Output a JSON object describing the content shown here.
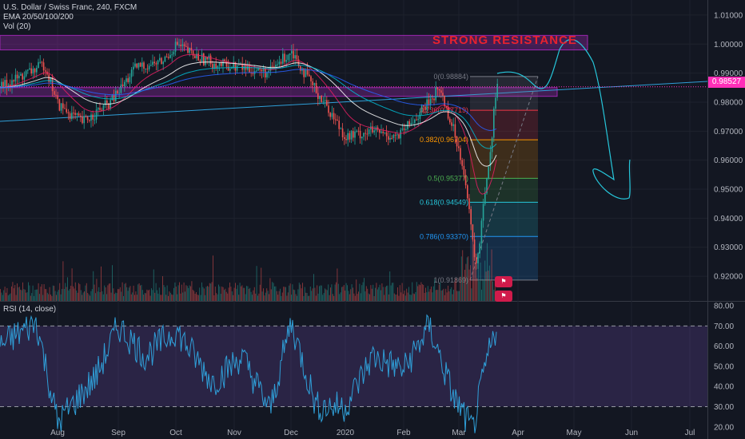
{
  "header": {
    "symbol_line": "U.S. Dollar / Swiss Franc, 240, FXCM",
    "ema_line": "EMA 20/50/100/200",
    "vol_line": "Vol (20)",
    "rsi_line": "RSI (14, close)"
  },
  "annotation": {
    "text": "STRONG RESISTANCE",
    "color": "#e8222e"
  },
  "current_price": "0.98527",
  "colors": {
    "background": "#131722",
    "up": "#26a69a",
    "down": "#ef5350",
    "zone": "#9c27b0",
    "line": "#2f9fd8",
    "rsi": "#2f9fd8",
    "price_badge": "#ff2fb8"
  },
  "chart_data": [
    {
      "type": "line",
      "title": "U.S. Dollar / Swiss Franc, 240, FXCM",
      "x_ticks": [
        "Aug",
        "Sep",
        "Oct",
        "Nov",
        "Dec",
        "2020",
        "Feb",
        "Mar",
        "Apr",
        "May",
        "Jun",
        "Jul"
      ],
      "y_ticks": [
        "1.01000",
        "1.00000",
        "0.99000",
        "0.98000",
        "0.97000",
        "0.96000",
        "0.95000",
        "0.94000",
        "0.93000",
        "0.92000"
      ],
      "ylim": [
        0.9115,
        1.013
      ],
      "series": [
        {
          "name": "price",
          "points": [
            [
              "Jul 1",
              0.985
            ],
            [
              "Jul 12",
              0.989
            ],
            [
              "Jul 24",
              0.993
            ],
            [
              "Aug 1",
              0.979
            ],
            [
              "Aug 13",
              0.973
            ],
            [
              "Aug 27",
              0.98
            ],
            [
              "Sep 10",
              0.992
            ],
            [
              "Sep 24",
              0.994
            ],
            [
              "Oct 1",
              1.0
            ],
            [
              "Oct 10",
              0.996
            ],
            [
              "Oct 22",
              0.993
            ],
            [
              "Nov 5",
              0.992
            ],
            [
              "Nov 19",
              0.99
            ],
            [
              "Dec 1",
              0.998
            ],
            [
              "Dec 10",
              0.988
            ],
            [
              "Dec 20",
              0.979
            ],
            [
              "Dec 31",
              0.968
            ],
            [
              "Jan 14",
              0.97
            ],
            [
              "Jan 28",
              0.968
            ],
            [
              "Feb 12",
              0.978
            ],
            [
              "Feb 20",
              0.985
            ],
            [
              "Feb 28",
              0.97
            ],
            [
              "Mar 3",
              0.958
            ],
            [
              "Mar 8",
              0.93
            ],
            [
              "Mar 10",
              0.923
            ],
            [
              "Mar 13",
              0.945
            ],
            [
              "Mar 17",
              0.965
            ],
            [
              "Mar 20",
              0.9885
            ],
            [
              "Mar 21",
              0.985
            ]
          ]
        }
      ],
      "resistance_zones": [
        [
          0.998,
          1.003
        ],
        [
          0.982,
          0.985
        ]
      ],
      "fibonacci": [
        {
          "label": "0(0.98884)",
          "value": 0.98884,
          "color": "#787b86"
        },
        {
          "label": "0.236(0.97719)",
          "value": 0.97719,
          "color": "#f23645"
        },
        {
          "label": "0.382(0.96704)",
          "value": 0.96704,
          "color": "#ff9800"
        },
        {
          "label": "0.5(0.95377)",
          "value": 0.95377,
          "color": "#4caf50"
        },
        {
          "label": "0.618(0.94549)",
          "value": 0.94549,
          "color": "#26c6da"
        },
        {
          "label": "0.786(0.93370)",
          "value": 0.9337,
          "color": "#2196f3"
        },
        {
          "label": "1(0.91869)",
          "value": 0.91869,
          "color": "#787b86"
        }
      ]
    },
    {
      "type": "line",
      "title": "RSI (14, close)",
      "y_ticks": [
        "80.00",
        "70.00",
        "60.00",
        "50.00",
        "40.00",
        "30.00",
        "20.00"
      ],
      "ylim": [
        14,
        82
      ],
      "bands": [
        30,
        70
      ],
      "series": [
        {
          "name": "RSI",
          "points": [
            [
              "Jul 1",
              60
            ],
            [
              "Jul 20",
              72
            ],
            [
              "Aug 1",
              22
            ],
            [
              "Aug 20",
              45
            ],
            [
              "Sep 1",
              70
            ],
            [
              "Sep 15",
              55
            ],
            [
              "Oct 1",
              68
            ],
            [
              "Oct 20",
              42
            ],
            [
              "Nov 5",
              55
            ],
            [
              "Nov 20",
              28
            ],
            [
              "Dec 1",
              72
            ],
            [
              "Dec 15",
              30
            ],
            [
              "Jan 1",
              30
            ],
            [
              "Jan 15",
              55
            ],
            [
              "Feb 1",
              48
            ],
            [
              "Feb 15",
              70
            ],
            [
              "Feb 28",
              35
            ],
            [
              "Mar 8",
              18
            ],
            [
              "Mar 15",
              52
            ],
            [
              "Mar 21",
              72
            ]
          ]
        }
      ]
    }
  ]
}
